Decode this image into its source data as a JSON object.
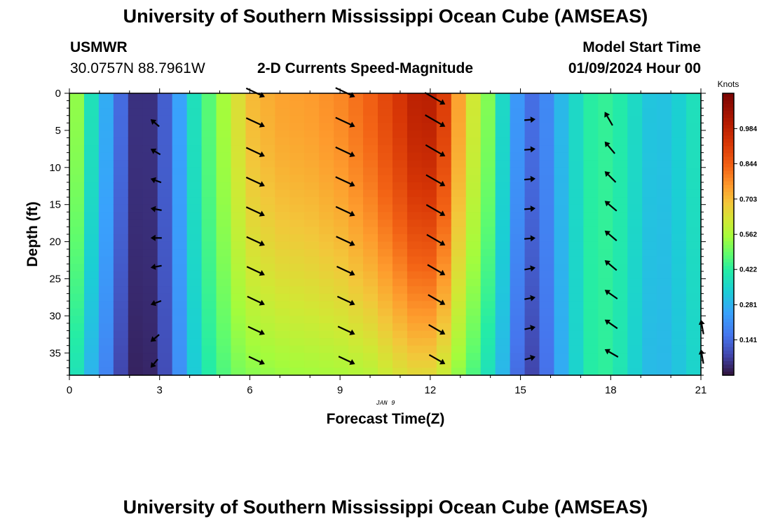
{
  "header": {
    "title": "University of Southern Mississippi Ocean Cube (AMSEAS)",
    "station": "USMWR",
    "coords": "30.0757N  88.7961W",
    "subtitle": "2-D Currents Speed-Magnitude",
    "model_start_label": "Model Start Time",
    "model_start_value": "01/09/2024 Hour 00"
  },
  "footer": {
    "title": "University of Southern Mississippi Ocean Cube (AMSEAS)"
  },
  "chart_data": {
    "type": "heatmap",
    "title": "2-D Currents Speed-Magnitude",
    "xlabel": "Forecast Time(Z)",
    "ylabel": "Depth (ft)",
    "date_label": "JAN 9",
    "xlim": [
      0,
      21
    ],
    "ylim": [
      0,
      38
    ],
    "x_ticks": [
      0,
      3,
      6,
      9,
      12,
      15,
      18,
      21
    ],
    "y_ticks": [
      0,
      5,
      10,
      15,
      20,
      25,
      30,
      35
    ],
    "x_tick_labels": [
      "0",
      "3",
      "6",
      "9",
      "12",
      "15",
      "18",
      "21"
    ],
    "y_tick_labels": [
      "0",
      "5",
      "10",
      "15",
      "20",
      "25",
      "30",
      "35"
    ],
    "colorbar": {
      "label": "Knots",
      "min": 0.0,
      "max": 1.125,
      "ticks": [
        0.141,
        0.281,
        0.422,
        0.562,
        0.703,
        0.844,
        0.984
      ],
      "tick_labels": [
        "0.141",
        "0.281",
        "0.422",
        "0.562",
        "0.703",
        "0.844",
        "0.984"
      ]
    },
    "speed_by_time": [
      {
        "t": 0.0,
        "top": 0.62,
        "bottom": 0.45
      },
      {
        "t": 0.5,
        "top": 0.44,
        "bottom": 0.32
      },
      {
        "t": 1.0,
        "top": 0.32,
        "bottom": 0.24
      },
      {
        "t": 1.5,
        "top": 0.2,
        "bottom": 0.12
      },
      {
        "t": 2.0,
        "top": 0.06,
        "bottom": 0.03
      },
      {
        "t": 2.5,
        "top": 0.03,
        "bottom": 0.02
      },
      {
        "t": 3.0,
        "top": 0.08,
        "bottom": 0.05
      },
      {
        "t": 3.5,
        "top": 0.2,
        "bottom": 0.17
      },
      {
        "t": 4.0,
        "top": 0.35,
        "bottom": 0.3
      },
      {
        "t": 4.5,
        "top": 0.45,
        "bottom": 0.4
      },
      {
        "t": 5.0,
        "top": 0.53,
        "bottom": 0.45
      },
      {
        "t": 5.5,
        "top": 0.62,
        "bottom": 0.5
      },
      {
        "t": 6.0,
        "top": 0.7,
        "bottom": 0.52
      },
      {
        "t": 6.5,
        "top": 0.72,
        "bottom": 0.53
      },
      {
        "t": 7.0,
        "top": 0.74,
        "bottom": 0.54
      },
      {
        "t": 8.0,
        "top": 0.75,
        "bottom": 0.55
      },
      {
        "t": 9.0,
        "top": 0.78,
        "bottom": 0.56
      },
      {
        "t": 10.0,
        "top": 0.84,
        "bottom": 0.58
      },
      {
        "t": 11.0,
        "top": 0.93,
        "bottom": 0.63
      },
      {
        "t": 11.8,
        "top": 1.02,
        "bottom": 0.66
      },
      {
        "t": 12.5,
        "top": 0.9,
        "bottom": 0.6
      },
      {
        "t": 13.0,
        "top": 0.72,
        "bottom": 0.52
      },
      {
        "t": 13.5,
        "top": 0.6,
        "bottom": 0.45
      },
      {
        "t": 14.0,
        "top": 0.5,
        "bottom": 0.37
      },
      {
        "t": 14.5,
        "top": 0.33,
        "bottom": 0.27
      },
      {
        "t": 15.0,
        "top": 0.2,
        "bottom": 0.11
      },
      {
        "t": 15.5,
        "top": 0.13,
        "bottom": 0.07
      },
      {
        "t": 16.0,
        "top": 0.22,
        "bottom": 0.18
      },
      {
        "t": 16.5,
        "top": 0.32,
        "bottom": 0.3
      },
      {
        "t": 17.0,
        "top": 0.38,
        "bottom": 0.37
      },
      {
        "t": 17.5,
        "top": 0.44,
        "bottom": 0.44
      },
      {
        "t": 18.0,
        "top": 0.43,
        "bottom": 0.42
      },
      {
        "t": 18.5,
        "top": 0.4,
        "bottom": 0.38
      },
      {
        "t": 19.0,
        "top": 0.34,
        "bottom": 0.32
      },
      {
        "t": 19.5,
        "top": 0.3,
        "bottom": 0.28
      },
      {
        "t": 20.0,
        "top": 0.32,
        "bottom": 0.3
      },
      {
        "t": 20.5,
        "top": 0.36,
        "bottom": 0.33
      },
      {
        "t": 21.0,
        "top": 0.4,
        "bottom": 0.37
      }
    ],
    "vectors": [
      {
        "t": 2.7,
        "depths": [
          3.5,
          7.5,
          11.5,
          15.5,
          19.5,
          23.5,
          28.5,
          33.5,
          37
        ],
        "dirs_deg": [
          140,
          150,
          160,
          170,
          180,
          190,
          200,
          220,
          230
        ],
        "mags": [
          0.06,
          0.06,
          0.06,
          0.06,
          0.06,
          0.06,
          0.05,
          0.05,
          0.05
        ]
      },
      {
        "t": 6.5,
        "depths": [
          0.5,
          4.5,
          8.5,
          12.5,
          16.5,
          20.5,
          24.5,
          28.5,
          32.5,
          36.5
        ],
        "dirs_deg": [
          -25,
          -25,
          -25,
          -25,
          -25,
          -25,
          -25,
          -25,
          -25,
          -25
        ],
        "mags": [
          0.72,
          0.72,
          0.72,
          0.72,
          0.72,
          0.7,
          0.68,
          0.65,
          0.6,
          0.55
        ]
      },
      {
        "t": 9.5,
        "depths": [
          0.5,
          4.5,
          8.5,
          12.5,
          16.5,
          20.5,
          24.5,
          28.5,
          32.5,
          36.5
        ],
        "dirs_deg": [
          -25,
          -25,
          -25,
          -25,
          -25,
          -25,
          -25,
          -25,
          -25,
          -25
        ],
        "mags": [
          0.78,
          0.78,
          0.78,
          0.78,
          0.76,
          0.74,
          0.7,
          0.66,
          0.62,
          0.58
        ]
      },
      {
        "t": 12.5,
        "depths": [
          1.5,
          4.5,
          8.5,
          12.5,
          16.5,
          20.5,
          24.5,
          28.5,
          32.5,
          36.5
        ],
        "dirs_deg": [
          -30,
          -30,
          -30,
          -30,
          -30,
          -30,
          -30,
          -30,
          -30,
          -30
        ],
        "mags": [
          0.9,
          0.88,
          0.85,
          0.82,
          0.8,
          0.77,
          0.72,
          0.68,
          0.64,
          0.6
        ]
      },
      {
        "t": 15.5,
        "depths": [
          3.5,
          7.5,
          11.5,
          15.5,
          19.5,
          23.5,
          27.5,
          31.5,
          35.5
        ],
        "dirs_deg": [
          5,
          5,
          5,
          5,
          5,
          10,
          10,
          12,
          15
        ],
        "mags": [
          0.14,
          0.14,
          0.14,
          0.14,
          0.14,
          0.13,
          0.13,
          0.12,
          0.1
        ]
      },
      {
        "t": 17.8,
        "depths": [
          2.5,
          6.5,
          10.5,
          14.5,
          18.5,
          22.5,
          26.5,
          30.5,
          34.5
        ],
        "dirs_deg": [
          120,
          130,
          135,
          140,
          140,
          140,
          145,
          145,
          150
        ],
        "mags": [
          0.43,
          0.43,
          0.43,
          0.43,
          0.43,
          0.43,
          0.42,
          0.42,
          0.42
        ]
      },
      {
        "t": 21.0,
        "depths": [
          30.5,
          34.5
        ],
        "dirs_deg": [
          100,
          100
        ],
        "mags": [
          0.38,
          0.37
        ]
      }
    ]
  }
}
